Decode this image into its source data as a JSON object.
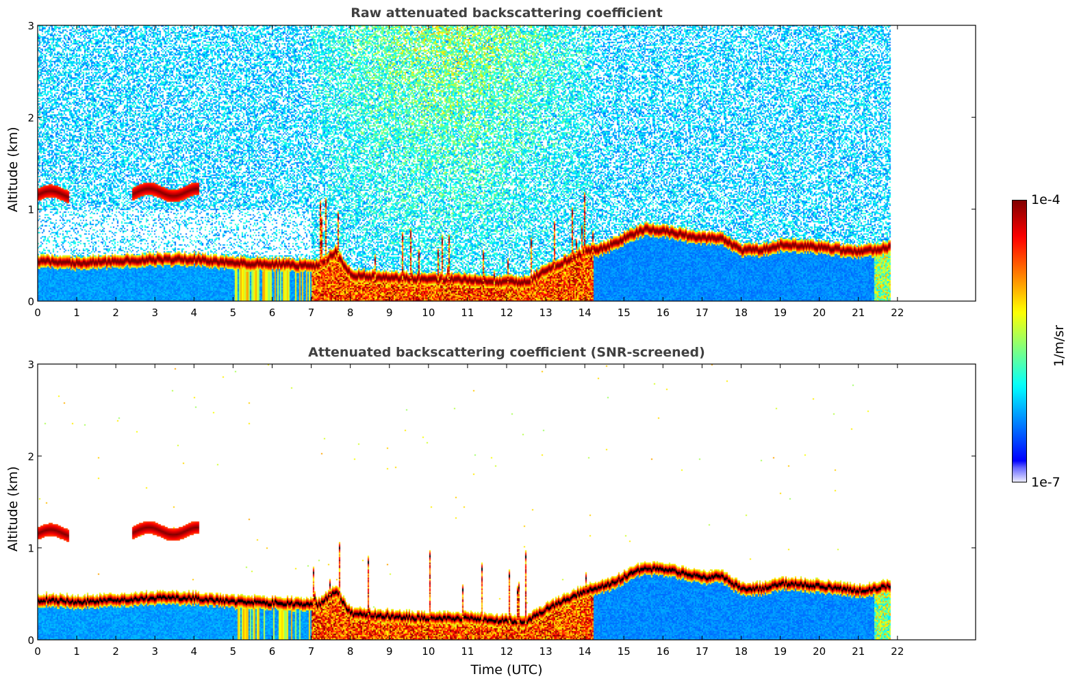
{
  "chart_data": [
    {
      "type": "heatmap",
      "id": "raw",
      "title": "Raw attenuated backscattering coefficient",
      "xlabel": "",
      "ylabel": "Altitude (km)",
      "xlim": [
        0,
        24
      ],
      "ylim": [
        0,
        3
      ],
      "xticks": [
        "0",
        "1",
        "2",
        "3",
        "4",
        "5",
        "6",
        "7",
        "8",
        "9",
        "10",
        "11",
        "12",
        "13",
        "14",
        "15",
        "16",
        "17",
        "18",
        "19",
        "20",
        "21",
        "22"
      ],
      "yticks": [
        "0",
        "1",
        "2",
        "3"
      ],
      "data_end_hour": 21.8,
      "snr_screened": false
    },
    {
      "type": "heatmap",
      "id": "snr",
      "title": "Attenuated backscattering coefficient (SNR-screened)",
      "xlabel": "Time (UTC)",
      "ylabel": "Altitude (km)",
      "xlim": [
        0,
        24
      ],
      "ylim": [
        0,
        3
      ],
      "xticks": [
        "0",
        "1",
        "2",
        "3",
        "4",
        "5",
        "6",
        "7",
        "8",
        "9",
        "10",
        "11",
        "12",
        "13",
        "14",
        "15",
        "16",
        "17",
        "18",
        "19",
        "20",
        "21",
        "22"
      ],
      "yticks": [
        "0",
        "1",
        "2",
        "3"
      ],
      "data_end_hour": 21.8,
      "snr_screened": true
    }
  ],
  "layers": {
    "boundary_layer_top_km": {
      "hours": [
        0.3,
        1,
        2,
        3,
        4,
        5,
        6,
        7,
        7.2,
        7.6,
        8,
        9,
        10,
        11,
        12,
        12.5,
        13,
        13.5,
        14,
        14.5,
        15,
        15.5,
        16,
        17,
        17.5,
        18,
        18.5,
        19,
        19.5,
        20,
        21,
        21.8
      ],
      "values": [
        0.45,
        0.43,
        0.45,
        0.47,
        0.47,
        0.43,
        0.42,
        0.4,
        0.4,
        0.55,
        0.3,
        0.27,
        0.25,
        0.25,
        0.22,
        0.22,
        0.35,
        0.45,
        0.55,
        0.6,
        0.7,
        0.8,
        0.78,
        0.7,
        0.7,
        0.57,
        0.57,
        0.63,
        0.62,
        0.6,
        0.55,
        0.6
      ]
    },
    "upper_cloud_km": {
      "segments": [
        {
          "start": 0.0,
          "end": 0.8,
          "base": 1.08,
          "top": 1.25
        },
        {
          "start": 2.4,
          "end": 4.1,
          "base": 1.08,
          "top": 1.3
        }
      ]
    }
  },
  "colorbar": {
    "label": "1/m/sr",
    "max_label": "1e-4",
    "min_label": "1e-7",
    "min": 1e-07,
    "max": 0.0001,
    "scale": "log",
    "colormap": "jet"
  }
}
